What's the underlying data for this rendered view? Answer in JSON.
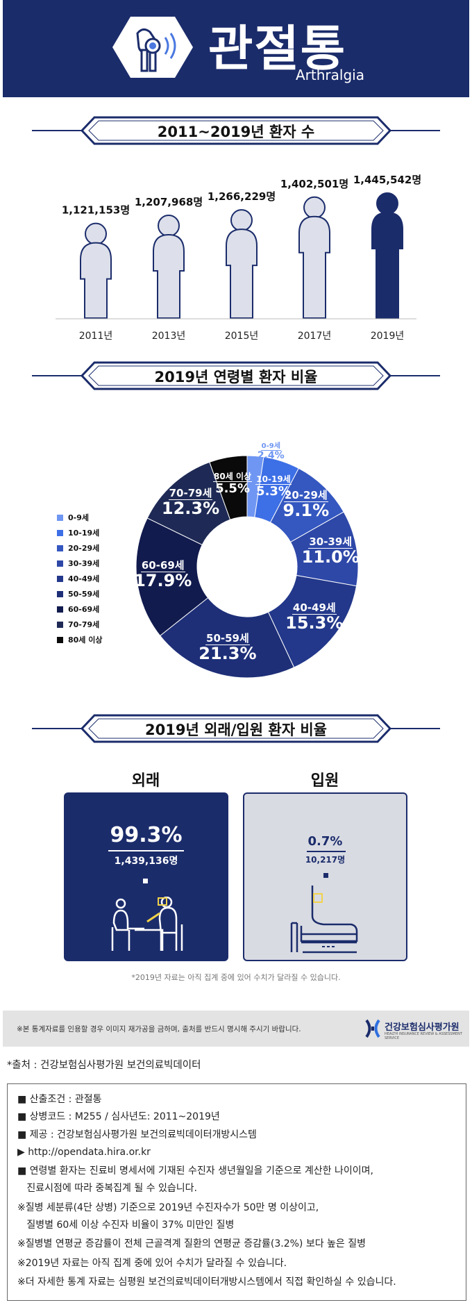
{
  "header": {
    "title": "관절통",
    "subtitle": "Arthralgia"
  },
  "section1": {
    "title": "2011~2019년 환자 수"
  },
  "section2": {
    "title": "2019년 연령별 환자 비율"
  },
  "section3": {
    "title": "2019년 외래/입원 환자 비율",
    "outpatient_title": "외래",
    "inpatient_title": "입원",
    "outpatient_pct": "99.3%",
    "outpatient_count": "1,439,136명",
    "inpatient_pct": "0.7%",
    "inpatient_count": "10,217명",
    "note": "*2019년 자료는 아직 집계 중에 있어 수치가 달라질 수 있습니다."
  },
  "footer_bar": {
    "notice": "※본 통계자료를 인용할 경우 이미지 재가공을 금하며, 출처를 반드시 명시해 주시기 바랍니다.",
    "logo_text": "건강보험심사평가원",
    "logo_sub": "HEALTH INSURANCE REVIEW & ASSESSMENT SERVICE"
  },
  "source": "*출처 : 건강보험심사평가원 보건의료빅데이터",
  "info": {
    "lines": [
      "■ 산출조건 : 관절통",
      "■ 상병코드 : M255 / 심사년도: 2011~2019년",
      "■ 제공 : 건강보험심사평가원 보건의료빅데이터개방시스템",
      "▶ http://opendata.hira.or.kr",
      "■ 연령별 환자는 진료비 명세서에 기재된 수진자 생년월일을 기준으로 계산한 나이이며,",
      "   진료시점에 따라 중복집계 될 수 있습니다.",
      "※질병 세분류(4단 상병) 기준으로 2019년 수진자수가 50만 명 이상이고,",
      "   질병별 60세 이상 수진자 비율이 37% 미만인 질병",
      "※질병별 연평균 증감률이 전체 근골격계 질환의 연평균 증감률(3.2%) 보다 높은 질병",
      "※2019년 자료는 아직 집계 중에 있어 수치가 달라질 수 있습니다.",
      "※더 자세한 통계 자료는 심평원 보건의료빅데이터개방시스템에서 직접 확인하실 수 있습니다."
    ]
  },
  "colors": {
    "navy": "#1b2c6b",
    "light_figure": "#dde0ea",
    "highlight_figure": "#1b2c6b",
    "inpatient_bg": "#d9dbe3"
  },
  "chart_data": [
    {
      "type": "bar",
      "title": "2011~2019년 환자 수",
      "categories": [
        "2011년",
        "2013년",
        "2015년",
        "2017년",
        "2019년"
      ],
      "values": [
        1121153,
        1207968,
        1266229,
        1402501,
        1445542
      ],
      "value_labels": [
        "1,121,153명",
        "1,207,968명",
        "1,266,229명",
        "1,402,501명",
        "1,445,542명"
      ],
      "highlight_index": 4
    },
    {
      "type": "pie",
      "title": "2019년 연령별 환자 비율",
      "categories": [
        "0-9세",
        "10-19세",
        "20-29세",
        "30-39세",
        "40-49세",
        "50-59세",
        "60-69세",
        "70-79세",
        "80세 이상"
      ],
      "values": [
        2.4,
        5.3,
        9.1,
        11.0,
        15.3,
        21.3,
        17.9,
        12.3,
        5.5
      ],
      "value_labels": [
        "2.4%",
        "5.3%",
        "9.1%",
        "11.0%",
        "15.3%",
        "21.3%",
        "17.9%",
        "12.3%",
        "5.5%"
      ],
      "colors": [
        "#6f96f2",
        "#3d6fe6",
        "#3457c0",
        "#2e48a8",
        "#23388a",
        "#1e2f78",
        "#121b4e",
        "#1e2a55",
        "#0a0a0a"
      ],
      "legend_position": "left"
    },
    {
      "type": "bar",
      "title": "2019년 외래/입원 환자 비율",
      "categories": [
        "외래",
        "입원"
      ],
      "values": [
        99.3,
        0.7
      ],
      "counts": [
        1439136,
        10217
      ]
    }
  ]
}
